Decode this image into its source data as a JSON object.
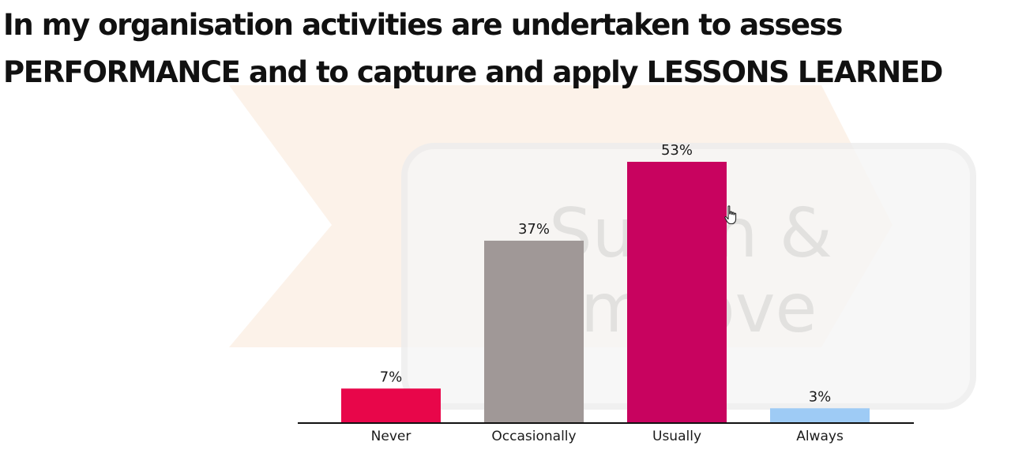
{
  "title": {
    "line1": "In my organisation activities are undertaken to assess",
    "line2": "PERFORMANCE and to capture and apply LESSONS LEARNED"
  },
  "watermark": {
    "line1": "Sus",
    "line1b": "n &",
    "line2": "m",
    "line2b": "ove"
  },
  "chart_data": {
    "type": "bar",
    "categories": [
      "Never",
      "Occasionally",
      "Usually",
      "Always"
    ],
    "values": [
      7,
      37,
      53,
      3
    ],
    "value_labels": [
      "7%",
      "37%",
      "53%",
      "3%"
    ],
    "colors": [
      "#e8064a",
      "#a09897",
      "#c8035f",
      "#9ecbf5"
    ],
    "ylim": [
      0,
      53
    ],
    "grid": false,
    "legend": "none"
  },
  "icons": {
    "cursor": "hand-pointer-icon"
  }
}
